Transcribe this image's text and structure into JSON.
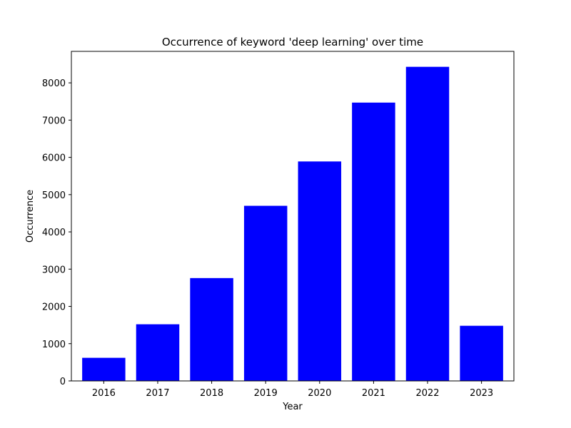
{
  "chart_data": {
    "type": "bar",
    "title": "Occurrence of keyword 'deep learning' over time",
    "xlabel": "Year",
    "ylabel": "Occurrence",
    "categories": [
      "2016",
      "2017",
      "2018",
      "2019",
      "2020",
      "2021",
      "2022",
      "2023"
    ],
    "values": [
      620,
      1520,
      2760,
      4700,
      5890,
      7470,
      8430,
      1480
    ],
    "ylim": [
      0,
      8845
    ],
    "yticks": [
      0,
      1000,
      2000,
      3000,
      4000,
      5000,
      6000,
      7000,
      8000
    ],
    "bar_color": "#0000ff",
    "grid": false,
    "legend": "none"
  }
}
